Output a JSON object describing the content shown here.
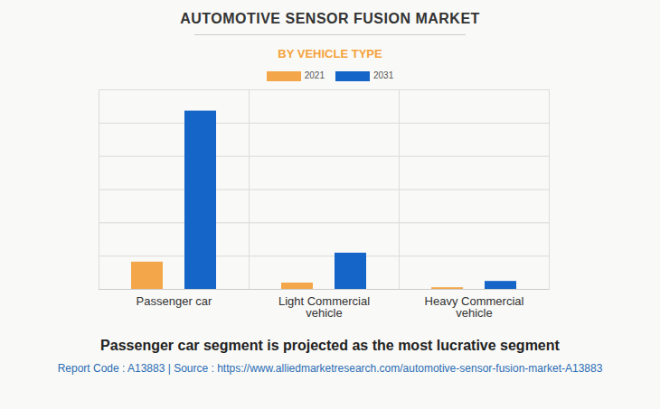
{
  "chart_data": {
    "type": "bar",
    "title": "AUTOMOTIVE SENSOR FUSION MARKET",
    "subtitle": "BY VEHICLE TYPE",
    "caption": "Passenger car segment is projected as the most lucrative segment",
    "source": "Report Code : A13883  |  Source : https://www.alliedmarketresearch.com/automotive-sensor-fusion-market-A13883",
    "categories": [
      "Passenger car",
      "Light Commercial vehicle",
      "Heavy Commercial vehicle"
    ],
    "series": [
      {
        "name": "2021",
        "color": "#f4a74a",
        "values": [
          0.82,
          0.19,
          0.05
        ]
      },
      {
        "name": "2031",
        "color": "#1565c8",
        "values": [
          5.36,
          1.09,
          0.24
        ]
      }
    ],
    "ylim": [
      0,
      6
    ],
    "yticks": [
      0,
      1,
      2,
      3,
      4,
      5,
      6
    ],
    "grid": true,
    "legend": "top",
    "tick_labels": "x"
  }
}
